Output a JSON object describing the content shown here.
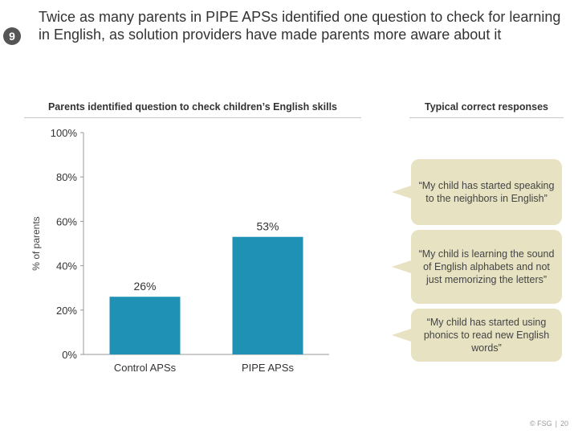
{
  "slide": {
    "number": "9",
    "title": "Twice as many parents in PIPE APSs identified one question to check for learning in English, as solution providers have made parents more aware about it"
  },
  "left_header": "Parents identified question to check children’s English skills",
  "right_header": "Typical correct responses",
  "callouts": [
    "“My child has started speaking to the neighbors in English”",
    "“My child is learning the sound of English alphabets and not just memorizing the letters”",
    "“My child has started using phonics to read new English words”"
  ],
  "footer": {
    "brand": "© FSG",
    "page": "20"
  },
  "colors": {
    "bar": "#1f91b4",
    "accent_title": "#333333",
    "callout_bg": "#e6e2c2"
  },
  "chart_data": {
    "type": "bar",
    "categories": [
      "Control APSs",
      "PIPE APSs"
    ],
    "values": [
      26,
      53
    ],
    "data_labels": [
      "26%",
      "53%"
    ],
    "ylabel": "% of parents",
    "ylim": [
      0,
      100
    ],
    "yticks": [
      "0%",
      "20%",
      "40%",
      "60%",
      "80%",
      "100%"
    ],
    "ytick_values": [
      0,
      20,
      40,
      60,
      80,
      100
    ],
    "grid": false,
    "legend": "none"
  }
}
